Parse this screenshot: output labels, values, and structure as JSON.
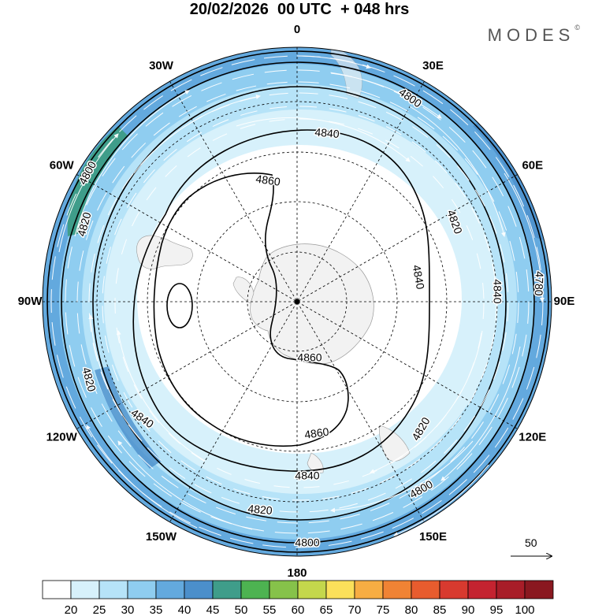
{
  "title": "20/02/2026  00 UTC  + 048 hrs",
  "brand": "MODES",
  "brand_mark": "©",
  "longitude_labels": [
    {
      "text": "0",
      "lon": 0
    },
    {
      "text": "30E",
      "lon": 30
    },
    {
      "text": "60E",
      "lon": 60
    },
    {
      "text": "90E",
      "lon": 90
    },
    {
      "text": "120E",
      "lon": 120
    },
    {
      "text": "150E",
      "lon": 150
    },
    {
      "text": "180",
      "lon": 180
    },
    {
      "text": "150W",
      "lon": -150
    },
    {
      "text": "120W",
      "lon": -120
    },
    {
      "text": "90W",
      "lon": -90
    },
    {
      "text": "60W",
      "lon": -60
    },
    {
      "text": "30W",
      "lon": -30
    }
  ],
  "contour_labels": [
    "4800",
    "4840",
    "4860",
    "4820",
    "4820",
    "4840",
    "4800",
    "4780",
    "4820",
    "4860",
    "4840",
    "4860",
    "4820",
    "4840",
    "4820",
    "4840",
    "4800",
    "4800"
  ],
  "reference_vector": "50",
  "colorbar": {
    "ticks": [
      "20",
      "25",
      "30",
      "35",
      "40",
      "45",
      "50",
      "55",
      "60",
      "65",
      "70",
      "75",
      "80",
      "85",
      "90",
      "95",
      "100"
    ],
    "colors": [
      "#ffffff",
      "#d7f1fb",
      "#b6e3f8",
      "#8fcdf0",
      "#63a9de",
      "#4b8fcb",
      "#3f9d8a",
      "#4db351",
      "#86c24a",
      "#c4d74c",
      "#fbe05a",
      "#f7ad43",
      "#f08334",
      "#e85c2e",
      "#d83a2f",
      "#c42330",
      "#a81d28",
      "#8a1820"
    ]
  }
}
